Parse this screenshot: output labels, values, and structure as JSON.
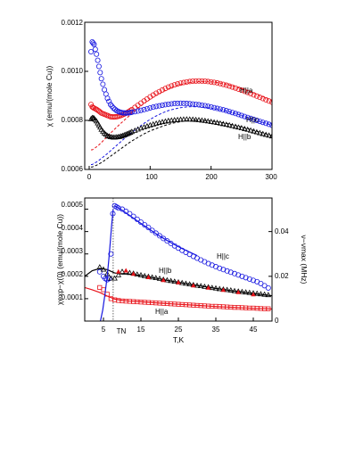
{
  "chart_data": [
    {
      "type": "scatter",
      "ylabel": "χ (emu/(mole Cu))",
      "xlim": [
        0,
        300
      ],
      "ylim": [
        0.0006,
        0.0012
      ],
      "x_ticks": [
        "0",
        "100",
        "200",
        "300"
      ],
      "y_ticks": [
        "0.0006",
        "0.0008",
        "0.0010",
        "0.0012"
      ],
      "grid": false,
      "legend": "none",
      "annotations": [
        "H||a",
        "H||c",
        "H||b"
      ],
      "series": [
        {
          "name": "H||a",
          "color": "#e8141b",
          "marker": "circle",
          "x": [
            3,
            5,
            8,
            12,
            16,
            20,
            25,
            30,
            35,
            40,
            45,
            50,
            55,
            60,
            65,
            70,
            80,
            90,
            100,
            110,
            120,
            130,
            140,
            150,
            160,
            170,
            180,
            190,
            200,
            210,
            220,
            230,
            240,
            250,
            260,
            270,
            280,
            290,
            300
          ],
          "y": [
            0.000865,
            0.000855,
            0.00085,
            0.000845,
            0.000838,
            0.00083,
            0.000825,
            0.00082,
            0.000815,
            0.000814,
            0.000815,
            0.000818,
            0.000823,
            0.000829,
            0.000836,
            0.000844,
            0.000862,
            0.000879,
            0.000896,
            0.000911,
            0.000924,
            0.000936,
            0.000945,
            0.000952,
            0.000957,
            0.00096,
            0.000961,
            0.00096,
            0.000957,
            0.000953,
            0.000947,
            0.00094,
            0.000932,
            0.000923,
            0.000914,
            0.000904,
            0.000894,
            0.000884,
            0.000874
          ],
          "fit_y": [
            0.00068,
            0.00068,
            0.000685,
            0.000692,
            0.0007,
            0.00071,
            0.000722,
            0.000735,
            0.000748,
            0.00076,
            0.000772,
            0.000784,
            0.000795,
            0.000806,
            0.000817,
            0.000828,
            0.000849,
            0.000869,
            0.000886,
            0.000902,
            0.000916,
            0.000928,
            0.000938,
            0.000946,
            0.000952,
            0.000956,
            0.000958,
            0.000958,
            0.000957,
            0.000954,
            0.00095,
            0.000944,
            0.000937,
            0.000929,
            0.000921,
            0.000912,
            0.000902,
            0.000892,
            0.000882
          ]
        },
        {
          "name": "H||c",
          "color": "#1616e0",
          "marker": "circle",
          "x": [
            3,
            5,
            8,
            12,
            16,
            20,
            25,
            30,
            35,
            40,
            45,
            50,
            55,
            60,
            65,
            70,
            80,
            90,
            100,
            110,
            120,
            130,
            140,
            150,
            160,
            170,
            180,
            190,
            200,
            210,
            220,
            230,
            240,
            250,
            260,
            270,
            280,
            290,
            300
          ],
          "y": [
            0.00108,
            0.00112,
            0.00111,
            0.00107,
            0.00102,
            0.00097,
            0.000925,
            0.00089,
            0.000865,
            0.00085,
            0.00084,
            0.000834,
            0.000831,
            0.00083,
            0.000831,
            0.000833,
            0.000838,
            0.000844,
            0.000851,
            0.000857,
            0.000862,
            0.000866,
            0.000869,
            0.00087,
            0.000869,
            0.000867,
            0.000864,
            0.00086,
            0.000855,
            0.000849,
            0.000843,
            0.000836,
            0.000828,
            0.00082,
            0.000812,
            0.000804,
            0.000796,
            0.000788,
            0.00078
          ],
          "fit_y": [
            0.00062,
            0.00062,
            0.000625,
            0.00063,
            0.000637,
            0.000645,
            0.000655,
            0.000665,
            0.000676,
            0.000687,
            0.000698,
            0.000709,
            0.00072,
            0.000731,
            0.000741,
            0.000751,
            0.00077,
            0.000788,
            0.000804,
            0.000818,
            0.00083,
            0.00084,
            0.000847,
            0.000852,
            0.000855,
            0.000856,
            0.000855,
            0.000853,
            0.00085,
            0.000846,
            0.000841,
            0.000835,
            0.000828,
            0.00082,
            0.000812,
            0.000804,
            0.000796,
            0.000788,
            0.00078
          ]
        },
        {
          "name": "H||b",
          "color": "#000000",
          "marker": "triangle",
          "x": [
            3,
            5,
            8,
            12,
            16,
            20,
            25,
            30,
            35,
            40,
            45,
            50,
            55,
            60,
            65,
            70,
            80,
            90,
            100,
            110,
            120,
            130,
            140,
            150,
            160,
            170,
            180,
            190,
            200,
            210,
            220,
            230,
            240,
            250,
            260,
            270,
            280,
            290,
            300
          ],
          "y": [
            0.000805,
            0.00081,
            0.000808,
            0.000796,
            0.00078,
            0.000762,
            0.000747,
            0.000737,
            0.000732,
            0.00073,
            0.000731,
            0.000733,
            0.000737,
            0.000742,
            0.000747,
            0.000753,
            0.000763,
            0.000772,
            0.00078,
            0.000787,
            0.000793,
            0.000798,
            0.000801,
            0.000803,
            0.000804,
            0.000803,
            0.000801,
            0.000798,
            0.000794,
            0.00079,
            0.000785,
            0.00078,
            0.000774,
            0.000768,
            0.000762,
            0.000755,
            0.000748,
            0.000741,
            0.000735
          ],
          "fit_y": [
            0.00061,
            0.00061,
            0.000613,
            0.000617,
            0.000622,
            0.000628,
            0.000636,
            0.000645,
            0.000654,
            0.000663,
            0.000672,
            0.000681,
            0.00069,
            0.000699,
            0.000708,
            0.000716,
            0.000731,
            0.000745,
            0.000757,
            0.000767,
            0.000776,
            0.000784,
            0.00079,
            0.000795,
            0.000798,
            0.0008,
            0.0008,
            0.000799,
            0.000797,
            0.000794,
            0.00079,
            0.000785,
            0.000779,
            0.000773,
            0.000766,
            0.000759,
            0.000752,
            0.000745,
            0.000738
          ]
        }
      ]
    },
    {
      "type": "scatter",
      "xlabel": "T,K",
      "ylabel": "χexp−χ(0) (emu/(mole Cu))",
      "ylabel_right": "ν−νmax (MHz)",
      "xlim": [
        0,
        50
      ],
      "ylim": [
        0,
        0.00055
      ],
      "y2lim": [
        0,
        0.055
      ],
      "x_ticks": [
        "5",
        "15",
        "25",
        "35",
        "45"
      ],
      "y_ticks": [
        "0.0001",
        "0.0002",
        "0.0003",
        "0.0004",
        "0.0005"
      ],
      "y2_ticks": [
        "0",
        "0.02",
        "0.04"
      ],
      "extra_tick_label": "TN",
      "TN": 7.6,
      "grid": false,
      "legend": "none",
      "annotations": [
        "H||c",
        "H||b",
        "H||a"
      ],
      "series": [
        {
          "name": "H||c",
          "color": "#1616e0",
          "marker": "circle",
          "x": [
            4,
            5,
            5.5,
            6,
            6.5,
            7,
            7.5,
            8,
            8.5,
            9,
            10,
            11,
            12,
            13,
            14,
            15,
            16,
            17,
            18,
            19,
            20,
            21,
            22,
            23,
            24,
            25,
            26,
            27,
            28,
            29,
            30,
            31,
            32,
            33,
            34,
            35,
            36,
            37,
            38,
            39,
            40,
            41,
            42,
            43,
            44,
            45,
            46,
            47,
            48,
            49
          ],
          "y": [
            0.00022,
            0.0002,
            0.00019,
            0.000185,
            0.00019,
            0.0003,
            0.00048,
            0.000515,
            0.00051,
            0.000505,
            0.0005,
            0.00049,
            0.00048,
            0.000468,
            0.000455,
            0.000442,
            0.00043,
            0.000418,
            0.000405,
            0.000393,
            0.000381,
            0.000369,
            0.000358,
            0.000347,
            0.000336,
            0.000326,
            0.000316,
            0.000307,
            0.000298,
            0.000289,
            0.000281,
            0.000273,
            0.000265,
            0.000257,
            0.00025,
            0.000243,
            0.000236,
            0.00023,
            0.000224,
            0.000218,
            0.000212,
            0.000206,
            0.0002,
            0.000194,
            0.000188,
            0.000182,
            0.000176,
            0.000168,
            0.000158,
            0.000148
          ],
          "fit_x": [
            8,
            10,
            12,
            14,
            16,
            18,
            20,
            22,
            24,
            26,
            28,
            30
          ],
          "fit_y": [
            0.000515,
            0.000495,
            0.000472,
            0.000448,
            0.000425,
            0.000402,
            0.00038,
            0.00036,
            0.000341,
            0.000324,
            0.000308,
            0.000293
          ]
        },
        {
          "name": "H||b",
          "color": "#000000",
          "marker": "triangle",
          "x": [
            4,
            5,
            6,
            7,
            8,
            9,
            10,
            11,
            12,
            13,
            14,
            15,
            16,
            17,
            18,
            19,
            20,
            21,
            22,
            23,
            24,
            25,
            26,
            27,
            28,
            29,
            30,
            31,
            32,
            33,
            34,
            35,
            36,
            37,
            38,
            39,
            40,
            41,
            42,
            43,
            44,
            45,
            46,
            47,
            48,
            49
          ],
          "y": [
            0.00024,
            0.00023,
            0.00021,
            0.00019,
            0.00019,
            0.000205,
            0.00022,
            0.00022,
            0.000215,
            0.000212,
            0.000208,
            0.000205,
            0.000201,
            0.000198,
            0.000195,
            0.000192,
            0.000189,
            0.000185,
            0.000182,
            0.000179,
            0.000176,
            0.000173,
            0.00017,
            0.000167,
            0.000164,
            0.000161,
            0.000158,
            0.000156,
            0.000153,
            0.000151,
            0.000148,
            0.000146,
            0.000143,
            0.000141,
            0.000139,
            0.000137,
            0.000134,
            0.000132,
            0.00013,
            0.000128,
            0.000126,
            0.000124,
            0.000122,
            0.00012,
            0.000118,
            0.000116
          ],
          "fit_x": [
            0,
            2,
            4,
            6,
            8,
            10,
            12,
            15,
            20,
            25,
            30,
            35,
            40,
            45,
            50
          ],
          "fit_y": [
            0.0002,
            0.000225,
            0.000235,
            0.00023,
            0.000215,
            0.00021,
            0.00021,
            0.000204,
            0.000188,
            0.000173,
            0.000159,
            0.000146,
            0.000134,
            0.000123,
            0.000113
          ]
        },
        {
          "name": "H||a",
          "color": "#e8141b",
          "marker": "square",
          "x": [
            4,
            5,
            6,
            7,
            8,
            9,
            10,
            11,
            12,
            13,
            14,
            15,
            16,
            17,
            18,
            19,
            20,
            21,
            22,
            23,
            24,
            25,
            26,
            27,
            28,
            29,
            30,
            31,
            32,
            33,
            34,
            35,
            36,
            37,
            38,
            39,
            40,
            41,
            42,
            43,
            44,
            45,
            46,
            47,
            48,
            49
          ],
          "y": [
            0.00015,
            0.00014,
            0.00012,
            0.0001,
            9.5e-05,
            9.2e-05,
            9e-05,
            8.9e-05,
            8.8e-05,
            8.7e-05,
            8.6e-05,
            8.5e-05,
            8.4e-05,
            8.3e-05,
            8.2e-05,
            8.1e-05,
            8e-05,
            7.9e-05,
            7.8e-05,
            7.7e-05,
            7.6e-05,
            7.5e-05,
            7.4e-05,
            7.3e-05,
            7.2e-05,
            7.1e-05,
            7e-05,
            6.9e-05,
            6.8e-05,
            6.7e-05,
            6.6e-05,
            6.6e-05,
            6.5e-05,
            6.4e-05,
            6.3e-05,
            6.2e-05,
            6.1e-05,
            6.1e-05,
            6e-05,
            5.9e-05,
            5.8e-05,
            5.8e-05,
            5.7e-05,
            5.6e-05,
            5.5e-05,
            5.5e-05
          ],
          "fit_x": [
            0,
            2,
            4,
            6,
            8,
            10,
            12,
            15,
            20,
            25,
            30,
            35,
            40,
            45,
            50
          ],
          "fit_y": [
            0.00015,
            0.00014,
            0.000128,
            0.000112,
            9.8e-05,
            9.2e-05,
            8.9e-05,
            8.6e-05,
            8e-05,
            7.5e-05,
            7e-05,
            6.5e-05,
            6.1e-05,
            5.7e-05,
            5.4e-05
          ]
        },
        {
          "name": "ν−νmax",
          "color": "#1616e0",
          "marker": "line",
          "x": [
            4.2,
            4.8,
            5.4,
            6,
            6.4,
            6.8,
            7.2,
            7.6
          ],
          "y2": [
            0,
            0.005,
            0.012,
            0.02,
            0.027,
            0.035,
            0.043,
            0.05
          ]
        },
        {
          "name": "red-dots",
          "color": "#e8141b",
          "marker": "triangle",
          "x": [
            9,
            11,
            13,
            17,
            21,
            25,
            29,
            33,
            37,
            41,
            45
          ],
          "y": [
            0.00022,
            0.000225,
            0.00021,
            0.000195,
            0.000182,
            0.000172,
            0.000158,
            0.000148,
            0.000138,
            0.000128,
            0.000118
          ]
        }
      ]
    }
  ]
}
